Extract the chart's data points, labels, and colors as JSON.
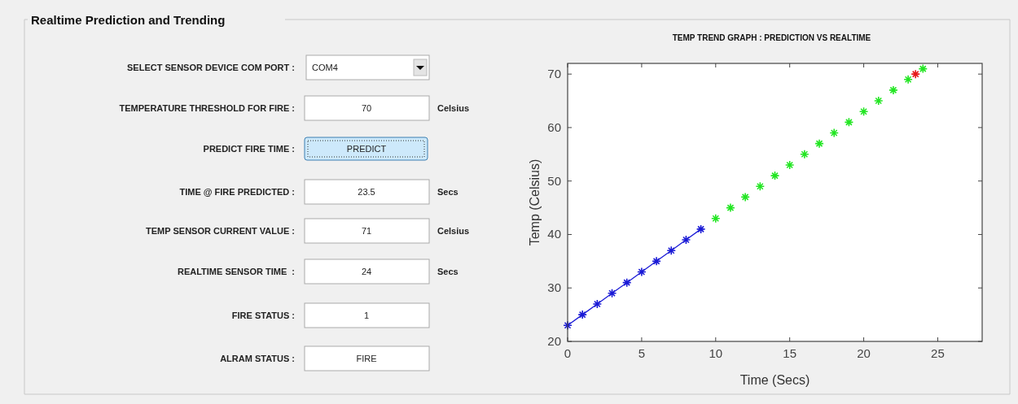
{
  "chart_data": [
    {
      "type": "other",
      "title": "Realtime Prediction and Trending",
      "annotations": [
        "SELECT SENSOR DEVICE COM PORT :",
        "COM4",
        "TEMPERATURE THRESHOLD FOR FIRE :",
        "70",
        "Celsius",
        "PREDICT FIRE TIME :",
        "PREDICT",
        "TIME @ FIRE PREDICTED :",
        "23.5",
        "Secs",
        "TEMP SENSOR CURRENT VALUE :",
        "71",
        "Celsius",
        "REALTIME SENSOR TIME  :",
        "24",
        "Secs",
        "FIRE STATUS :",
        "1",
        "ALRAM STATUS :",
        "FIRE"
      ]
    },
    {
      "type": "scatter",
      "title": "TEMP TREND GRAPH : PREDICTION VS REALTIME",
      "xlabel": "Time (Secs)",
      "ylabel": "Temp (Celsius)",
      "xlim": [
        0,
        28
      ],
      "ylim": [
        20,
        72
      ],
      "xticks": [
        0,
        5,
        10,
        15,
        20,
        25
      ],
      "yticks": [
        20,
        30,
        40,
        50,
        60,
        70
      ],
      "marker": "cross",
      "series": [
        {
          "type": "line",
          "color": "#1a1ad6",
          "x": [
            0,
            1,
            2,
            3,
            4,
            5,
            6,
            7,
            8,
            9
          ],
          "values": [
            23,
            25,
            27,
            29,
            31,
            33,
            35,
            37,
            39,
            41
          ]
        },
        {
          "color": "#22e622",
          "x": [
            10,
            11,
            12,
            13,
            14,
            15,
            16,
            17,
            18,
            19,
            20,
            21,
            22,
            23,
            24
          ],
          "values": [
            43,
            45,
            47,
            49,
            51,
            53,
            55,
            57,
            59,
            61,
            63,
            65,
            67,
            69,
            71
          ]
        },
        {
          "color": "#e61a1a",
          "x": [
            23.5
          ],
          "values": [
            70
          ]
        }
      ]
    }
  ]
}
